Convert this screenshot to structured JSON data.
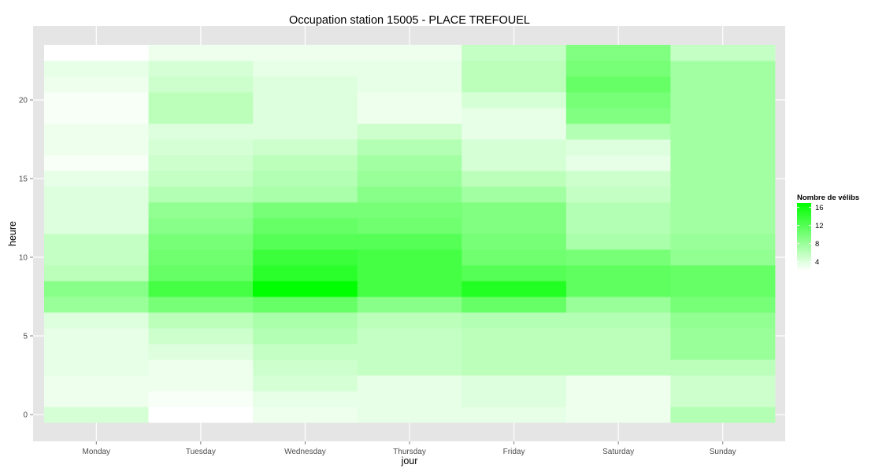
{
  "chart_data": {
    "type": "heatmap",
    "title": "Occupation station 15005 - PLACE TREFOUEL",
    "xlabel": "jour",
    "ylabel": "heure",
    "x": [
      "Monday",
      "Tuesday",
      "Wednesday",
      "Thursday",
      "Friday",
      "Saturday",
      "Sunday"
    ],
    "y": [
      0,
      1,
      2,
      3,
      4,
      5,
      6,
      7,
      8,
      9,
      10,
      11,
      12,
      13,
      14,
      15,
      16,
      17,
      18,
      19,
      20,
      21,
      22,
      23
    ],
    "yticks": [
      0,
      5,
      10,
      15,
      20
    ],
    "ylim": [
      -0.5,
      23.5
    ],
    "grid": true,
    "colors": {
      "low": "#ffffff",
      "high": "#00ff00",
      "panel": "#e5e5e5",
      "grid": "#ffffff"
    },
    "legend": {
      "title": "Nombre de vélibs",
      "placement": "right",
      "breaks": [
        4,
        8,
        12,
        16
      ],
      "range": [
        2,
        17
      ]
    },
    "values": [
      [
        4.5,
        2.0,
        3.0,
        3.5,
        3.5,
        3.0,
        6.5
      ],
      [
        3.0,
        2.5,
        3.5,
        3.5,
        4.0,
        3.0,
        5.0
      ],
      [
        3.0,
        3.0,
        4.5,
        3.5,
        4.0,
        3.0,
        5.0
      ],
      [
        3.5,
        3.0,
        5.0,
        5.5,
        6.0,
        6.0,
        6.0
      ],
      [
        3.5,
        4.0,
        5.5,
        5.5,
        6.0,
        6.0,
        8.0
      ],
      [
        3.5,
        5.0,
        6.5,
        5.5,
        6.0,
        6.0,
        8.0
      ],
      [
        4.0,
        6.0,
        7.0,
        6.0,
        6.5,
        6.5,
        8.5
      ],
      [
        8.0,
        10.0,
        11.0,
        9.0,
        11.0,
        8.0,
        10.0
      ],
      [
        9.0,
        13.0,
        17.0,
        13.0,
        15.0,
        11.5,
        11.0
      ],
      [
        6.0,
        11.0,
        14.5,
        13.0,
        12.0,
        11.5,
        11.0
      ],
      [
        5.5,
        10.5,
        13.5,
        13.0,
        10.5,
        10.0,
        8.5
      ],
      [
        5.5,
        10.0,
        12.0,
        12.0,
        10.0,
        7.0,
        8.0
      ],
      [
        4.0,
        9.0,
        11.0,
        10.5,
        9.5,
        6.5,
        7.5
      ],
      [
        4.0,
        8.5,
        10.0,
        10.0,
        9.5,
        6.5,
        7.5
      ],
      [
        4.0,
        6.5,
        7.0,
        9.0,
        7.5,
        5.5,
        7.5
      ],
      [
        3.5,
        5.5,
        6.5,
        8.0,
        6.0,
        5.0,
        7.5
      ],
      [
        2.5,
        5.0,
        6.0,
        7.5,
        4.5,
        3.5,
        7.5
      ],
      [
        3.0,
        4.5,
        5.0,
        6.5,
        4.5,
        4.0,
        7.5
      ],
      [
        3.0,
        4.0,
        4.0,
        5.0,
        3.5,
        6.5,
        7.5
      ],
      [
        2.5,
        6.0,
        4.0,
        3.0,
        3.5,
        9.5,
        7.5
      ],
      [
        2.5,
        6.0,
        4.0,
        3.0,
        4.5,
        10.0,
        7.5
      ],
      [
        3.0,
        5.0,
        4.0,
        3.5,
        6.0,
        11.0,
        7.5
      ],
      [
        3.5,
        4.5,
        3.5,
        3.5,
        6.0,
        10.0,
        7.5
      ],
      [
        2.0,
        3.0,
        3.0,
        3.0,
        5.5,
        9.5,
        5.5
      ]
    ]
  }
}
